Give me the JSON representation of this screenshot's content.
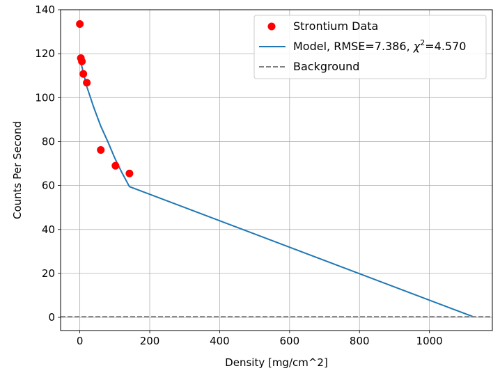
{
  "chart_data": {
    "type": "scatter",
    "title": "",
    "xlabel": "Density [mg/cm^2]",
    "ylabel": "Counts Per Second",
    "xlim": [
      -55,
      1180
    ],
    "ylim": [
      -6,
      140
    ],
    "xticks": [
      0,
      200,
      400,
      600,
      800,
      1000
    ],
    "yticks": [
      0,
      20,
      40,
      60,
      80,
      100,
      120,
      140
    ],
    "grid": true,
    "legend_position": "top-right",
    "series": [
      {
        "name": "Strontium Data",
        "kind": "scatter",
        "color": "#ff0000",
        "x": [
          0,
          3,
          6,
          10,
          20,
          60,
          102,
          142
        ],
        "y": [
          133.5,
          118,
          116.5,
          110.8,
          106.8,
          76.2,
          69,
          65.5
        ]
      },
      {
        "name_prefix": "Model, RMSE=7.386, ",
        "name_chi": "χ",
        "name_sup": "2",
        "name_suffix": "=4.570",
        "kind": "line",
        "color": "#1f77b4",
        "x": [
          0,
          20,
          40,
          60,
          80,
          100,
          120,
          142,
          1125
        ],
        "y": [
          118,
          105,
          95.5,
          87,
          80,
          72.5,
          66,
          59.5,
          0.3
        ]
      },
      {
        "name": "Background",
        "kind": "hline",
        "color": "#808080",
        "y": 0.3
      }
    ]
  }
}
